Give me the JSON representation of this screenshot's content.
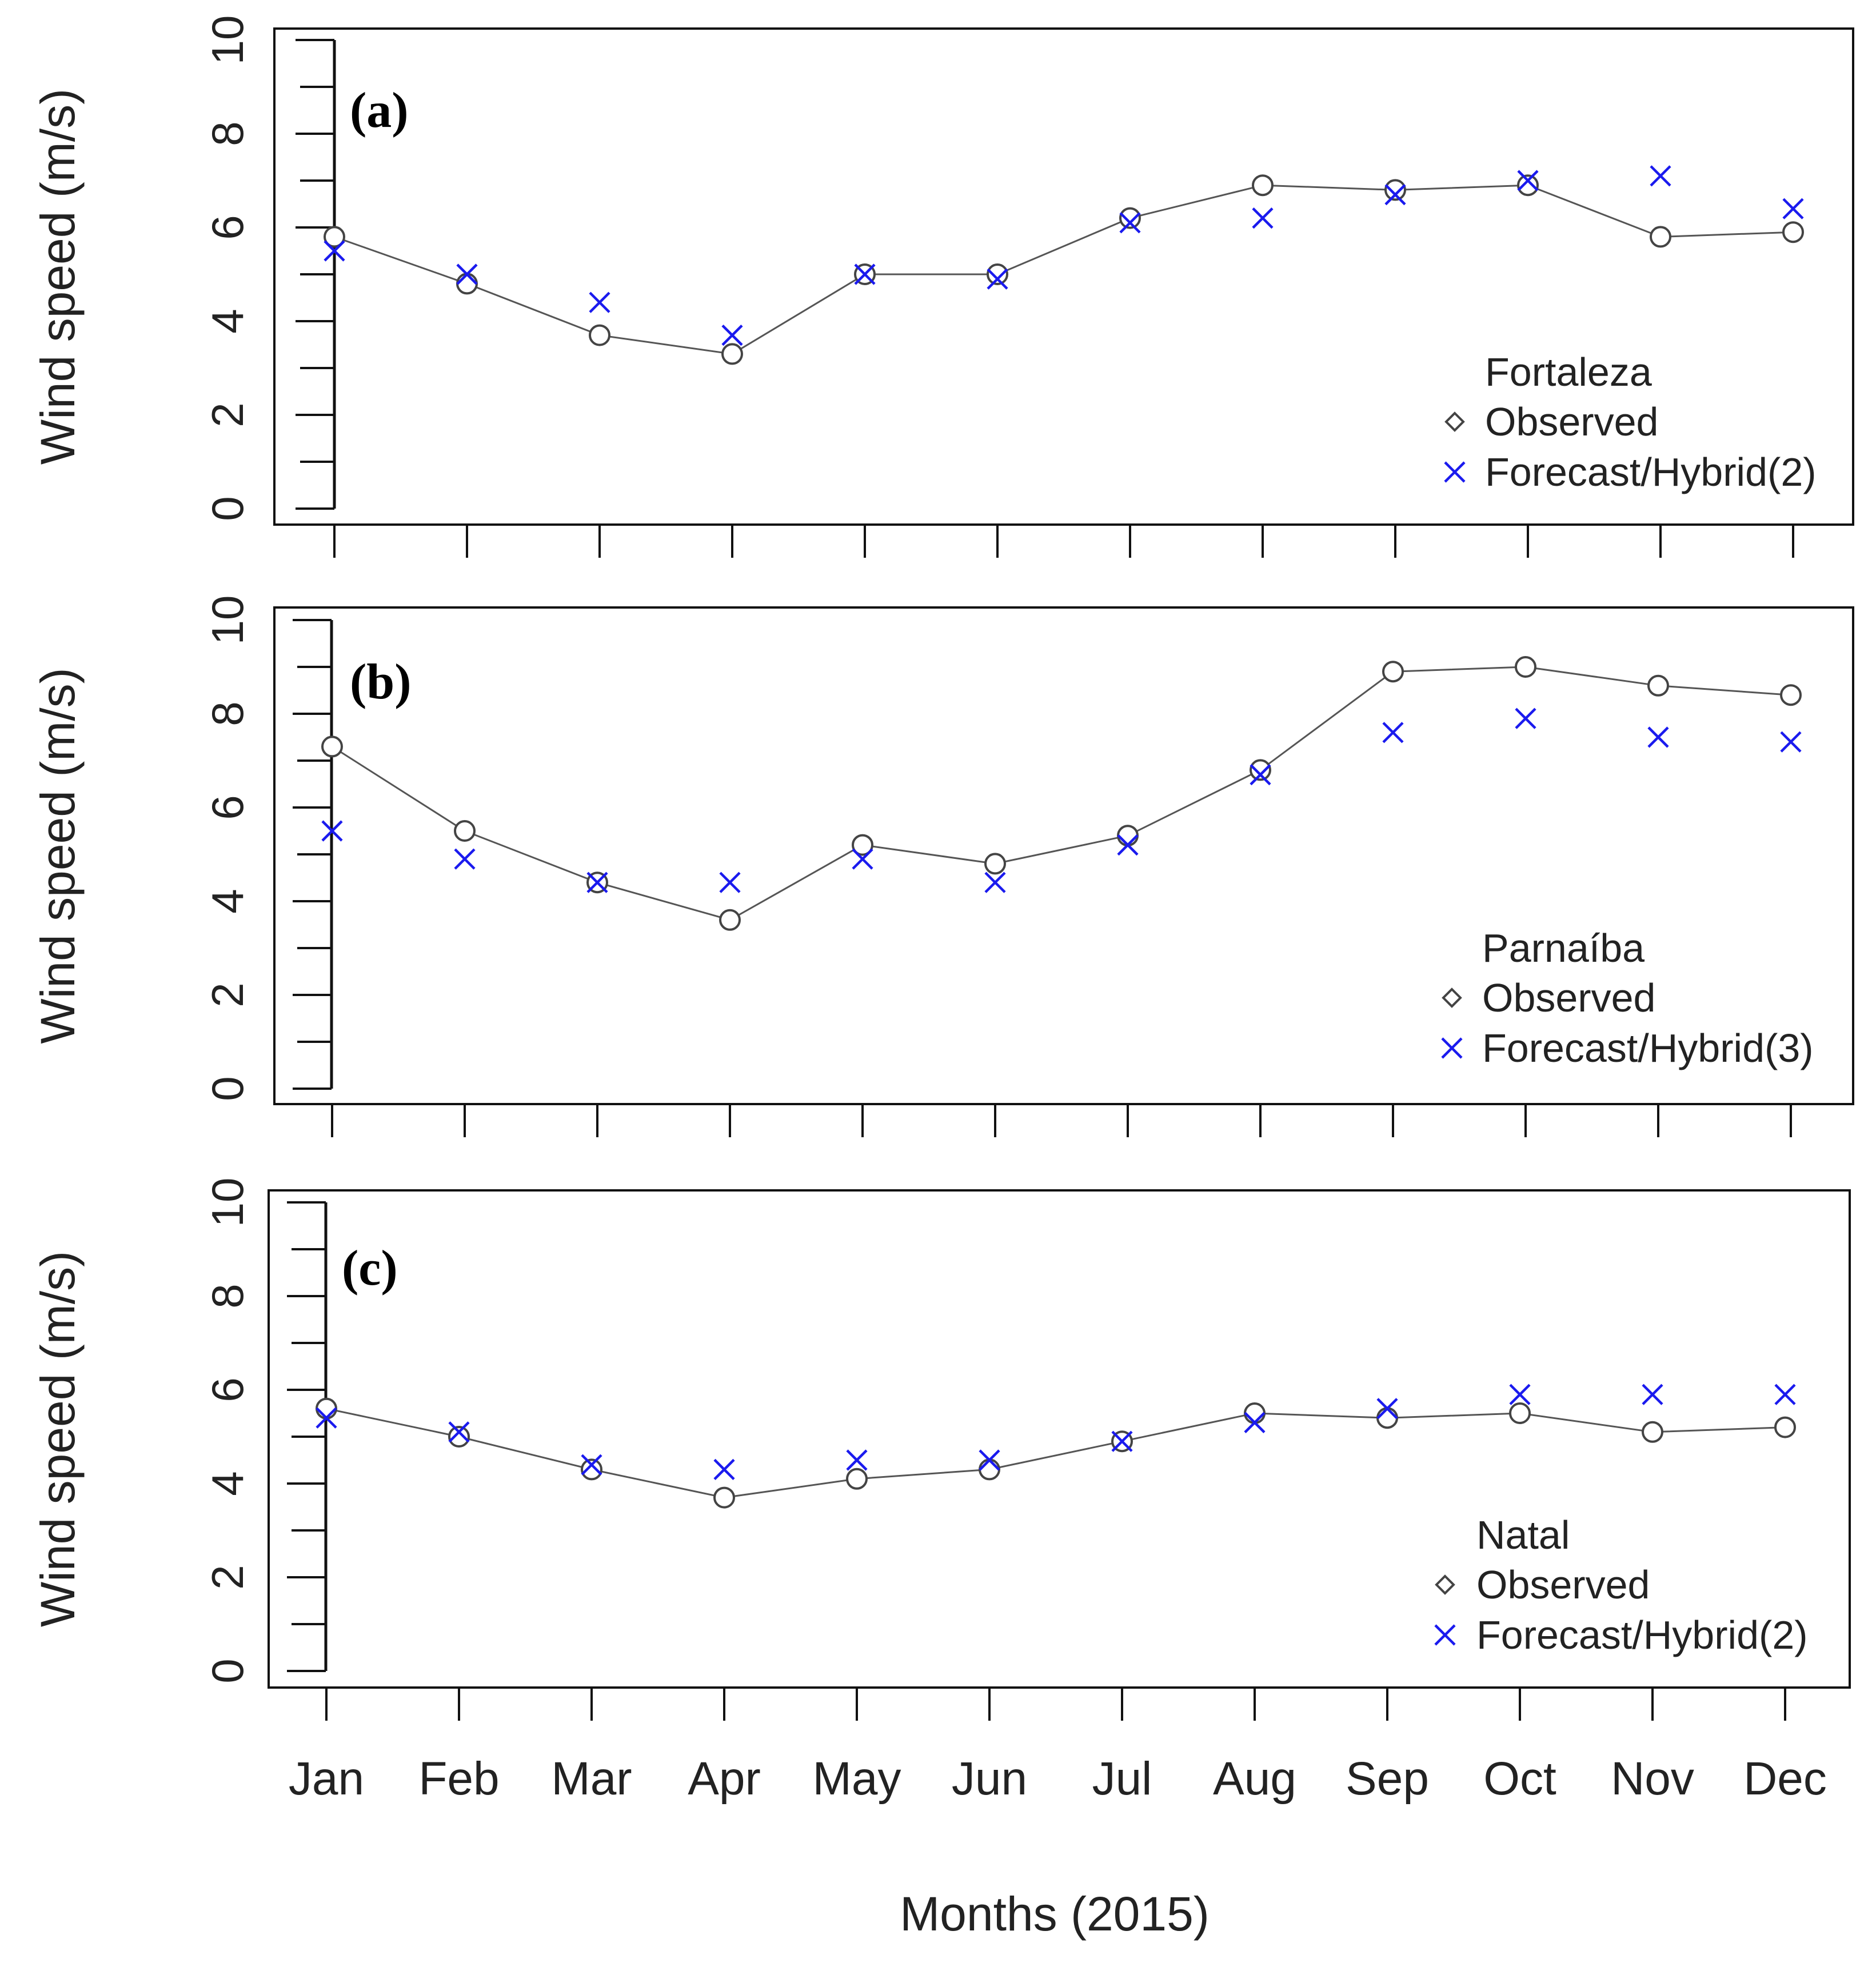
{
  "figure": {
    "xlabel": "Months (2015)",
    "ylabel": "Wind speed (m/s)",
    "months": [
      "Jan",
      "Feb",
      "Mar",
      "Apr",
      "May",
      "Jun",
      "Jul",
      "Aug",
      "Sep",
      "Oct",
      "Nov",
      "Dec"
    ]
  },
  "chart_data": [
    {
      "type": "line",
      "panel": "(a)",
      "legend_title": "Fortaleza",
      "legend_placement": "bottom-right",
      "categories": [
        "Jan",
        "Feb",
        "Mar",
        "Apr",
        "May",
        "Jun",
        "Jul",
        "Aug",
        "Sep",
        "Oct",
        "Nov",
        "Dec"
      ],
      "ylim": [
        0,
        10
      ],
      "yticks": [
        0,
        2,
        4,
        6,
        8,
        10
      ],
      "ylabel": "Wind speed (m/s)",
      "series": [
        {
          "name": "Observed",
          "marker": "circle",
          "color": "#444444",
          "connected": true,
          "values": [
            5.8,
            4.8,
            3.7,
            3.3,
            5.0,
            5.0,
            6.2,
            6.9,
            6.8,
            6.9,
            5.8,
            5.9
          ]
        },
        {
          "name": "Forecast/Hybrid(2)",
          "marker": "x",
          "color": "#1a1aee",
          "connected": false,
          "values": [
            5.5,
            5.0,
            4.4,
            3.7,
            5.0,
            4.9,
            6.1,
            6.2,
            6.7,
            7.0,
            7.1,
            6.4
          ]
        }
      ]
    },
    {
      "type": "line",
      "panel": "(b)",
      "legend_title": "Parnaíba",
      "legend_placement": "bottom-right",
      "categories": [
        "Jan",
        "Feb",
        "Mar",
        "Apr",
        "May",
        "Jun",
        "Jul",
        "Aug",
        "Sep",
        "Oct",
        "Nov",
        "Dec"
      ],
      "ylim": [
        0,
        10
      ],
      "yticks": [
        0,
        2,
        4,
        6,
        8,
        10
      ],
      "ylabel": "Wind speed (m/s)",
      "series": [
        {
          "name": "Observed",
          "marker": "circle",
          "color": "#444444",
          "connected": true,
          "values": [
            7.3,
            5.5,
            4.4,
            3.6,
            5.2,
            4.8,
            5.4,
            6.8,
            8.9,
            9.0,
            8.6,
            8.4
          ]
        },
        {
          "name": "Forecast/Hybrid(3)",
          "marker": "x",
          "color": "#1a1aee",
          "connected": false,
          "values": [
            5.5,
            4.9,
            4.4,
            4.4,
            4.9,
            4.4,
            5.2,
            6.7,
            7.6,
            7.9,
            7.5,
            7.4
          ]
        }
      ]
    },
    {
      "type": "line",
      "panel": "(c)",
      "legend_title": "Natal",
      "legend_placement": "bottom-right",
      "categories": [
        "Jan",
        "Feb",
        "Mar",
        "Apr",
        "May",
        "Jun",
        "Jul",
        "Aug",
        "Sep",
        "Oct",
        "Nov",
        "Dec"
      ],
      "ylim": [
        0,
        10
      ],
      "yticks": [
        0,
        2,
        4,
        6,
        8,
        10
      ],
      "ylabel": "Wind speed (m/s)",
      "series": [
        {
          "name": "Observed",
          "marker": "circle",
          "color": "#444444",
          "connected": true,
          "values": [
            5.6,
            5.0,
            4.3,
            3.7,
            4.1,
            4.3,
            4.9,
            5.5,
            5.4,
            5.5,
            5.1,
            5.2
          ]
        },
        {
          "name": "Forecast/Hybrid(2)",
          "marker": "x",
          "color": "#1a1aee",
          "connected": false,
          "values": [
            5.4,
            5.1,
            4.4,
            4.3,
            4.5,
            4.5,
            4.9,
            5.3,
            5.6,
            5.9,
            5.9,
            5.9
          ]
        }
      ]
    }
  ]
}
